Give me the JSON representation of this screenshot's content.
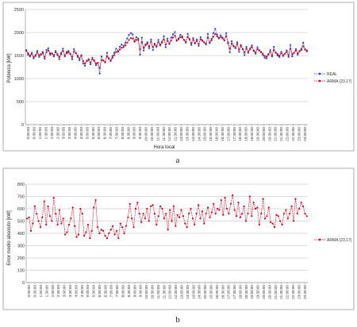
{
  "chart_data": [
    {
      "type": "line",
      "panel_label": "a",
      "ylabel": "Potencia [kW]",
      "xlabel": "Hora local",
      "ylim": [
        0,
        2500
      ],
      "yticks": [
        "0",
        "500",
        "1000",
        "1500",
        "2000",
        "2500"
      ],
      "x_tick_labels": [
        "0:00:00",
        "0:30:00",
        "1:00:00",
        "1:30:00",
        "2:00:00",
        "2:30:00",
        "3:00:00",
        "3:30:00",
        "4:00:00",
        "4:30:00",
        "5:00:00",
        "5:30:00",
        "6:00:00",
        "6:30:00",
        "7:00:00",
        "7:30:00",
        "8:00:00",
        "8:30:00",
        "9:00:00",
        "9:30:00",
        "10:00:00",
        "10:30:00",
        "11:00:00",
        "11:30:00",
        "12:00:00",
        "12:30:00",
        "13:00:00",
        "13:30:00",
        "14:00:00",
        "14:30:00",
        "15:00:00",
        "15:30:00",
        "16:00:00",
        "16:30:00",
        "17:00:00",
        "17:30:00",
        "18:00:00",
        "18:30:00",
        "19:00:00",
        "19:30:00",
        "20:00:00",
        "20:30:00",
        "21:00:00",
        "21:30:00",
        "22:00:00",
        "22:30:00",
        "23:00:00",
        "23:30:00"
      ],
      "grid": true,
      "legend_position": "right",
      "series": [
        {
          "name": "REAL",
          "color": "#1f3fd6",
          "values": [
            1620,
            1520,
            1480,
            1560,
            1440,
            1510,
            1600,
            1470,
            1530,
            1580,
            1430,
            1620,
            1660,
            1520,
            1550,
            1480,
            1600,
            1510,
            1420,
            1560,
            1650,
            1480,
            1580,
            1600,
            1530,
            1420,
            1640,
            1550,
            1470,
            1400,
            1510,
            1330,
            1280,
            1390,
            1420,
            1310,
            1450,
            1380,
            1290,
            1340,
            1110,
            1480,
            1390,
            1350,
            1560,
            1430,
            1380,
            1490,
            1560,
            1650,
            1600,
            1690,
            1740,
            1710,
            1780,
            1870,
            1950,
            1990,
            1960,
            1820,
            1900,
            1870,
            1520,
            1890,
            1610,
            1740,
            1790,
            1660,
            1850,
            1620,
            1760,
            1690,
            1840,
            1720,
            1800,
            1920,
            1680,
            1870,
            1750,
            1890,
            1960,
            2010,
            1820,
            1870,
            1950,
            1920,
            1840,
            1780,
            1970,
            1860,
            1730,
            1880,
            1760,
            1850,
            1710,
            1900,
            1830,
            1780,
            1740,
            1970,
            1770,
            1860,
            1990,
            2080,
            1960,
            1880,
            1940,
            1890,
            1830,
            1990,
            1760,
            1570,
            1810,
            1700,
            1660,
            1790,
            1580,
            1730,
            1640,
            1510,
            1690,
            1560,
            1650,
            1720,
            1600,
            1540,
            1680,
            1620,
            1570,
            1510,
            1450,
            1440,
            1530,
            1620,
            1480,
            1690,
            1560,
            1500,
            1470,
            1580,
            1490,
            1540,
            1610,
            1470,
            1730,
            1480,
            1560,
            1640,
            1520,
            1600,
            1650,
            1780,
            1630,
            1590
          ]
        },
        {
          "name": "ARMA (23,17)",
          "color": "#e0001b",
          "values": [
            1600,
            1550,
            1500,
            1530,
            1470,
            1490,
            1560,
            1510,
            1520,
            1550,
            1470,
            1570,
            1610,
            1550,
            1540,
            1510,
            1570,
            1530,
            1470,
            1530,
            1600,
            1510,
            1550,
            1570,
            1540,
            1470,
            1590,
            1560,
            1500,
            1440,
            1490,
            1380,
            1330,
            1380,
            1400,
            1350,
            1420,
            1400,
            1330,
            1340,
            1230,
            1400,
            1390,
            1360,
            1480,
            1440,
            1400,
            1450,
            1510,
            1580,
            1580,
            1630,
            1670,
            1680,
            1720,
            1780,
            1840,
            1880,
            1870,
            1800,
            1840,
            1840,
            1630,
            1790,
            1670,
            1720,
            1760,
            1700,
            1800,
            1690,
            1740,
            1710,
            1790,
            1740,
            1780,
            1850,
            1740,
            1820,
            1770,
            1830,
            1890,
            1930,
            1830,
            1850,
            1900,
            1890,
            1840,
            1800,
            1900,
            1850,
            1770,
            1840,
            1780,
            1820,
            1750,
            1850,
            1820,
            1790,
            1760,
            1890,
            1790,
            1830,
            1910,
            1970,
            1920,
            1870,
            1900,
            1870,
            1830,
            1920,
            1790,
            1650,
            1760,
            1710,
            1680,
            1750,
            1630,
            1700,
            1650,
            1570,
            1650,
            1590,
            1630,
            1680,
            1610,
            1570,
            1640,
            1610,
            1580,
            1540,
            1490,
            1480,
            1520,
            1580,
            1510,
            1620,
            1570,
            1530,
            1500,
            1550,
            1510,
            1540,
            1580,
            1510,
            1650,
            1530,
            1560,
            1610,
            1550,
            1590,
            1620,
            1700,
            1640,
            1610
          ]
        }
      ]
    },
    {
      "type": "line",
      "panel_label": "b",
      "ylabel": "Error medio absoluto [kW]",
      "xlabel": "",
      "ylim": [
        0,
        800
      ],
      "yticks": [
        "0",
        "100",
        "200",
        "300",
        "400",
        "500",
        "600",
        "700",
        "800"
      ],
      "x_tick_labels": [
        "0:00:00",
        "0:30:00",
        "1:00:00",
        "1:30:00",
        "2:00:00",
        "2:30:00",
        "3:00:00",
        "3:30:00",
        "4:00:00",
        "4:30:00",
        "5:00:00",
        "5:30:00",
        "6:00:00",
        "6:30:00",
        "7:00:00",
        "7:30:00",
        "8:00:00",
        "8:30:00",
        "9:00:00",
        "9:30:00",
        "10:00:00",
        "10:30:00",
        "11:00:00",
        "11:30:00",
        "12:00:00",
        "12:30:00",
        "13:00:00",
        "13:30:00",
        "14:00:00",
        "14:30:00",
        "15:00:00",
        "15:30:00",
        "16:00:00",
        "16:30:00",
        "17:00:00",
        "17:30:00",
        "18:00:00",
        "18:30:00",
        "19:00:00",
        "19:30:00",
        "20:00:00",
        "20:30:00",
        "21:00:00",
        "21:30:00",
        "22:00:00",
        "22:30:00",
        "23:00:00",
        "23:30:00"
      ],
      "grid": true,
      "legend_position": "right",
      "series": [
        {
          "name": "ARMA (23,17)",
          "color": "#e0001b",
          "values": [
            520,
            530,
            420,
            480,
            620,
            560,
            500,
            450,
            530,
            660,
            470,
            620,
            540,
            500,
            690,
            560,
            470,
            590,
            480,
            520,
            390,
            410,
            470,
            520,
            610,
            460,
            370,
            390,
            600,
            560,
            380,
            410,
            470,
            360,
            420,
            610,
            670,
            450,
            400,
            430,
            420,
            380,
            360,
            400,
            430,
            460,
            390,
            420,
            360,
            480,
            450,
            400,
            460,
            530,
            640,
            520,
            450,
            600,
            650,
            560,
            490,
            560,
            520,
            600,
            500,
            620,
            630,
            560,
            470,
            540,
            620,
            600,
            520,
            560,
            430,
            590,
            500,
            620,
            460,
            550,
            530,
            590,
            540,
            480,
            450,
            560,
            600,
            520,
            470,
            560,
            630,
            520,
            580,
            480,
            560,
            610,
            530,
            570,
            640,
            560,
            600,
            590,
            670,
            550,
            690,
            600,
            560,
            640,
            710,
            590,
            540,
            650,
            530,
            560,
            620,
            500,
            560,
            700,
            540,
            650,
            600,
            610,
            470,
            560,
            680,
            520,
            540,
            610,
            490,
            480,
            450,
            550,
            540,
            500,
            470,
            560,
            590,
            520,
            560,
            620,
            500,
            680,
            560,
            600,
            650,
            620,
            560,
            540
          ]
        }
      ]
    }
  ]
}
